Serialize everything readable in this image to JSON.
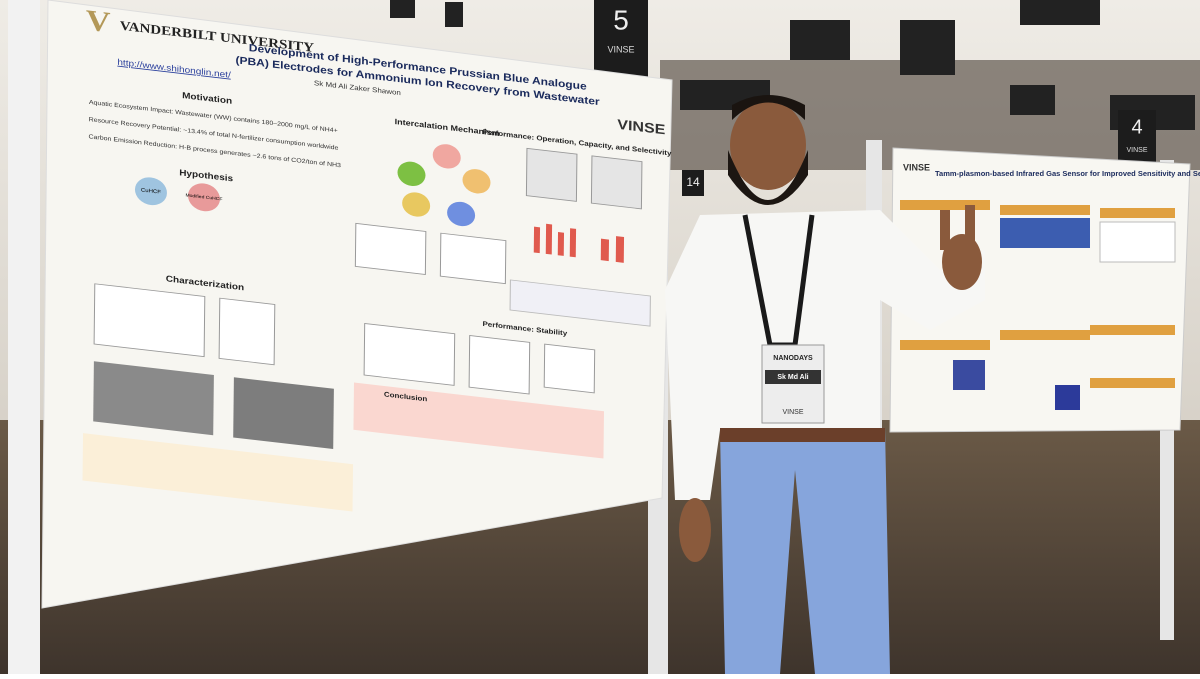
{
  "left_poster": {
    "logo": "VANDERBILT UNIVERSITY",
    "url": "http://www.shihonglin.net/",
    "title_line1": "Development of High-Performance Prussian Blue Analogue",
    "title_line2": "(PBA) Electrodes for Ammonium Ion Recovery from Wastewater",
    "author": "Sk Md Ali Zaker Shawon",
    "brand": "VINSE",
    "sections": {
      "motivation": "Motivation",
      "hypothesis": "Hypothesis",
      "characterization": "Characterization",
      "mechanism": "Intercalation Mechanism",
      "performance": "Performance: Operation, Capacity, and Selectivity",
      "stability": "Performance: Stability",
      "conclusion": "Conclusion"
    },
    "motivation": [
      "Aquatic Ecosystem Impact: Wastewater (WW) contains 180–2000 mg/L of NH4+",
      "Resource Recovery Potential: ~13.4% of total N-fertilizer consumption worldwide",
      "Carbon Emission Reduction: H-B process generates ~2.6 tons of CO2/ton of NH3"
    ],
    "hypothesis": [
      "CuHCF",
      "Modified CuHCF"
    ]
  },
  "signs": [
    {
      "number": "5",
      "brand": "VINSE"
    },
    {
      "number": "4",
      "brand": "VINSE"
    },
    {
      "number": "14"
    }
  ],
  "badge": {
    "event": "NANODAYS",
    "name": "Sk Md Ali",
    "brand": "VINSE"
  },
  "right_poster": {
    "title": "Tamm-plasmon-based Infrared Gas Sensor for Improved Sensitivity and Selectivity",
    "brand": "VINSE"
  }
}
